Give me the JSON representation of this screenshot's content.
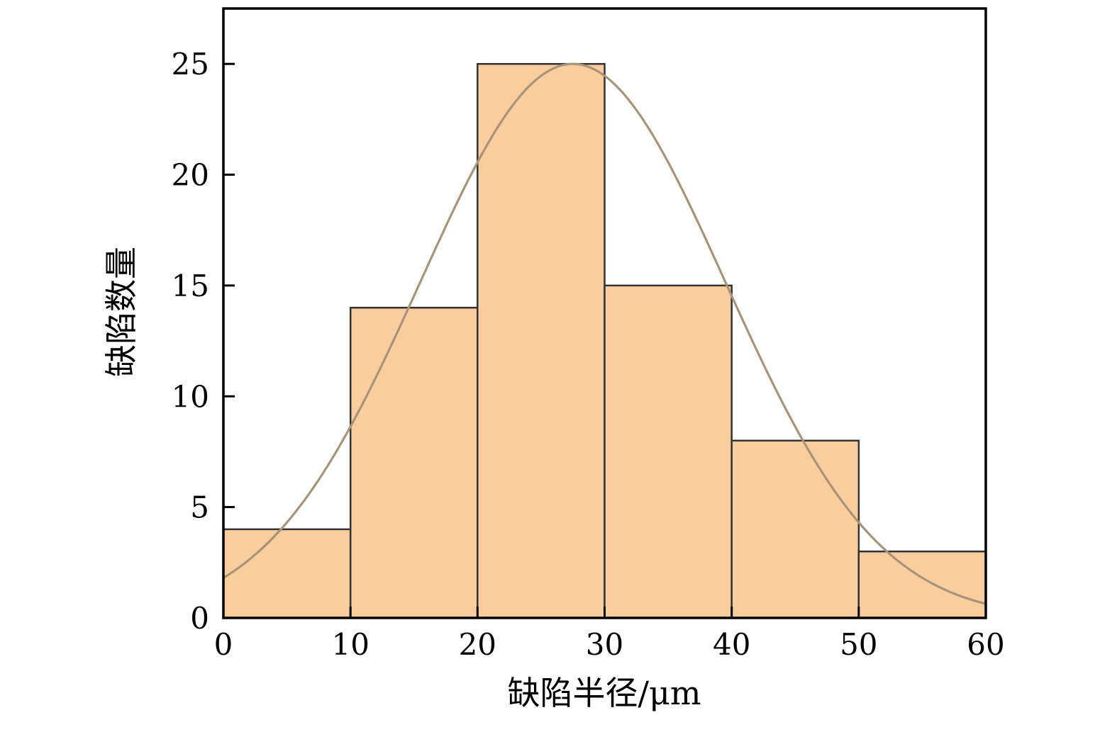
{
  "chart_data": {
    "type": "bar",
    "subtype": "histogram-with-fit-curve",
    "title": "",
    "xlabel": "缺陷半径/μm",
    "ylabel": "缺陷数量",
    "bin_edges": [
      0,
      10,
      20,
      30,
      40,
      50,
      60
    ],
    "categories": [
      "0-10",
      "10-20",
      "20-30",
      "30-40",
      "40-50",
      "50-60"
    ],
    "values": [
      4,
      14,
      25,
      15,
      8,
      3
    ],
    "xlim": [
      0,
      60
    ],
    "ylim": [
      0,
      27.5
    ],
    "xticks": [
      0,
      10,
      20,
      30,
      40,
      50,
      60
    ],
    "yticks": [
      0,
      5,
      10,
      15,
      20,
      25
    ],
    "grid": false,
    "legend": null,
    "curve": {
      "type": "gaussian",
      "amplitude": 25,
      "mean": 27.5,
      "sigma": 12
    },
    "colors": {
      "bar_fill": "#FACD9E",
      "bar_border": "#333333",
      "curve": "#A89478",
      "axis": "#000000",
      "background": "#FFFFFF"
    }
  }
}
